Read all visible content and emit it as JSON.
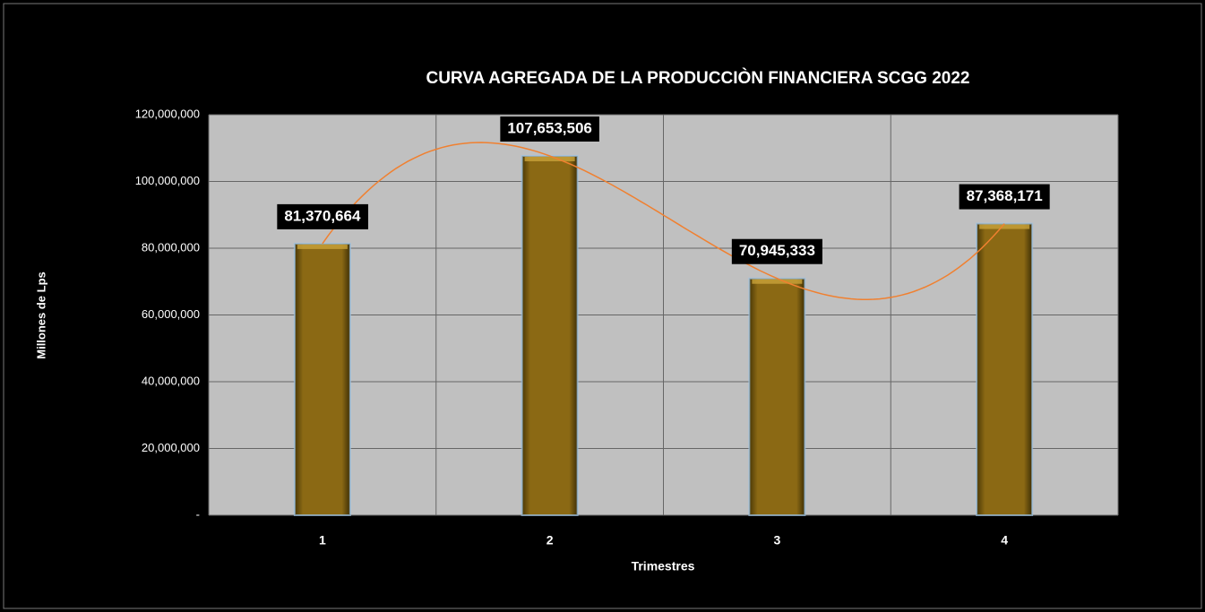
{
  "chart_data": {
    "type": "bar",
    "title": "CURVA  AGREGADA  DE LA PRODUCCIÒN  FINANCIERA   SCGG 2022",
    "x_label": "Trimestres",
    "y_label": "Millones de Lps",
    "categories": [
      "1",
      "2",
      "3",
      "4"
    ],
    "values": [
      81370664,
      107653506,
      70945333,
      87368171
    ],
    "value_labels": [
      "81,370,664",
      "107,653,506",
      "70,945,333",
      "87,368,171"
    ],
    "color": "#8b6914",
    "ylim": [
      0,
      120000000
    ],
    "yticks": [
      {
        "value": 0,
        "label": "-"
      },
      {
        "value": 20000000,
        "label": "20,000,000"
      },
      {
        "value": 40000000,
        "label": "40,000,000"
      },
      {
        "value": 60000000,
        "label": "60,000,000"
      },
      {
        "value": 80000000,
        "label": "80,000,000"
      },
      {
        "value": 100000000,
        "label": "100,000,000"
      },
      {
        "value": 120000000,
        "label": "120,000,000"
      }
    ],
    "grid": true,
    "trendline": {
      "type": "polynomial",
      "order": 3,
      "color": "#f08030"
    }
  }
}
